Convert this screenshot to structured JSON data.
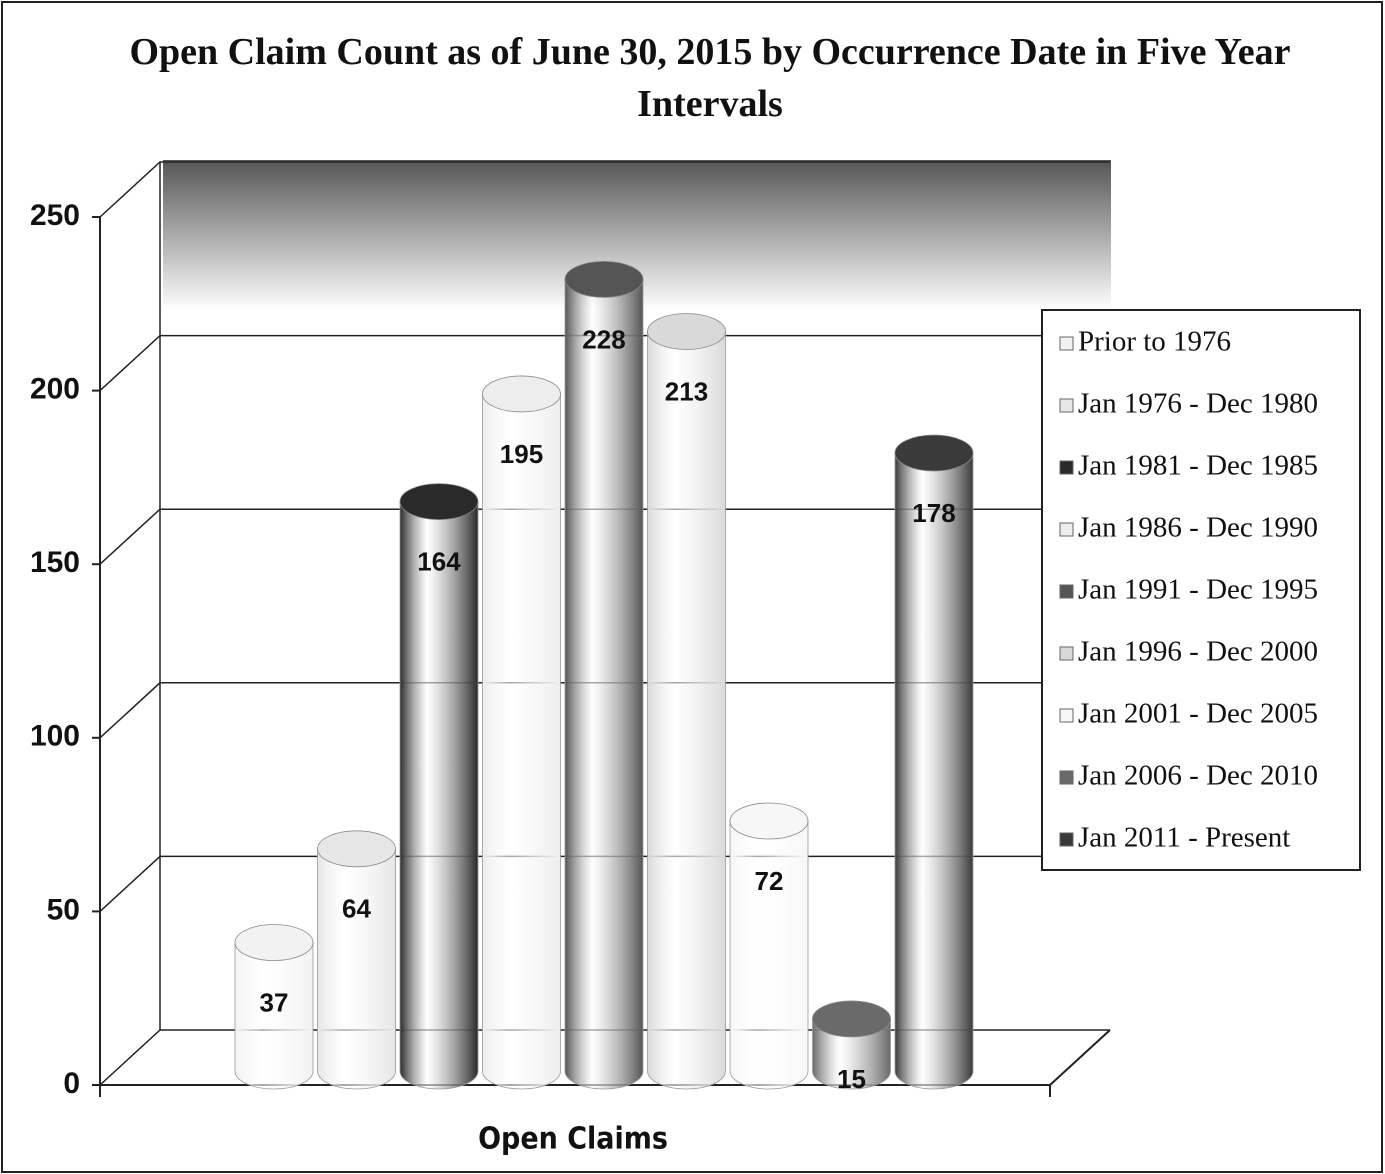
{
  "chart_data": {
    "type": "bar3d",
    "title": "Open Claim Count as of June 30, 2015 by Occurrence Date in Five Year Intervals",
    "categories": [
      "Open Claims"
    ],
    "series": [
      {
        "name": "Prior to 1976",
        "color": "#f2f2f2",
        "values": [
          37
        ]
      },
      {
        "name": "Jan 1976 - Dec 1980",
        "color": "#e6e6e6",
        "values": [
          64
        ]
      },
      {
        "name": "Jan 1981 - Dec 1985",
        "color": "#2a2a2a",
        "values": [
          164
        ]
      },
      {
        "name": "Jan 1986 - Dec 1990",
        "color": "#ededed",
        "values": [
          195
        ]
      },
      {
        "name": "Jan 1991 - Dec 1995",
        "color": "#555555",
        "values": [
          228
        ]
      },
      {
        "name": "Jan 1996 - Dec 2000",
        "color": "#d9d9d9",
        "values": [
          213
        ]
      },
      {
        "name": "Jan 2001 - Dec 2005",
        "color": "#f7f7f7",
        "values": [
          72
        ]
      },
      {
        "name": "Jan 2006 - Dec 2010",
        "color": "#6a6a6a",
        "values": [
          15
        ]
      },
      {
        "name": "Jan 2011 - Present",
        "color": "#3a3a3a",
        "values": [
          178
        ]
      }
    ],
    "ylim": [
      0,
      250
    ],
    "yticks": [
      0,
      50,
      100,
      150,
      200,
      250
    ],
    "grid": true,
    "legend": "right"
  }
}
